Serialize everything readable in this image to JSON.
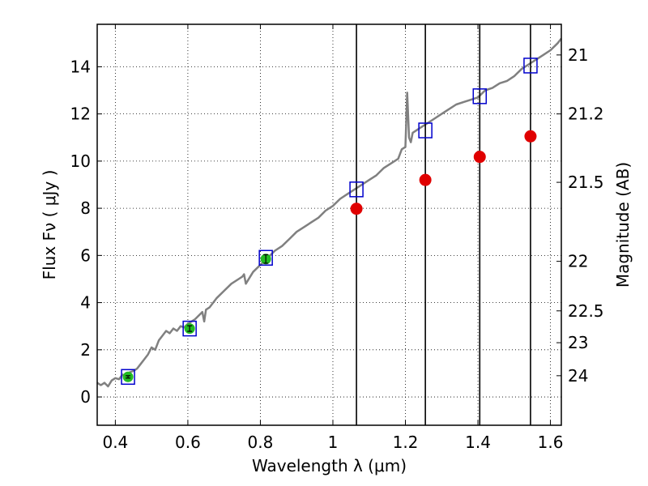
{
  "chart_data": {
    "type": "line",
    "title": "",
    "xlabel": "Wavelength  λ (μm)",
    "ylabel": "Flux  Fν  ( μJy )",
    "y2label": "Magnitude (AB)",
    "xlim": [
      0.35,
      1.63
    ],
    "ylim": [
      -1.2,
      15.8
    ],
    "x_ticks": [
      0.4,
      0.6,
      0.8,
      1.0,
      1.2,
      1.4,
      1.6
    ],
    "x_tick_labels": [
      "0.4",
      "0.6",
      "0.8",
      "1",
      "1.2",
      "1.4",
      "1.6"
    ],
    "y_ticks": [
      0,
      2,
      4,
      6,
      8,
      10,
      12,
      14
    ],
    "y_tick_labels": [
      "0",
      "2",
      "4",
      "6",
      "8",
      "10",
      "12",
      "14"
    ],
    "y2_tick_labels": [
      {
        "label": "21",
        "flux": 14.5
      },
      {
        "label": "21.2",
        "flux": 12.0
      },
      {
        "label": "21.5",
        "flux": 9.1
      },
      {
        "label": "22",
        "flux": 5.75
      },
      {
        "label": "22.5",
        "flux": 3.65
      },
      {
        "label": "23",
        "flux": 2.3
      },
      {
        "label": "24",
        "flux": 0.9
      }
    ],
    "grid": true,
    "colors": {
      "spectrum": "#808080",
      "model_box": "#0000cc",
      "red_point": "#e00000",
      "green_point": "#22bb22"
    },
    "series": [
      {
        "style": "line",
        "x": [
          0.35,
          0.36,
          0.37,
          0.38,
          0.39,
          0.4,
          0.41,
          0.42,
          0.43,
          0.44,
          0.45,
          0.46,
          0.47,
          0.48,
          0.49,
          0.5,
          0.51,
          0.52,
          0.53,
          0.54,
          0.55,
          0.56,
          0.57,
          0.58,
          0.59,
          0.6,
          0.62,
          0.64,
          0.645,
          0.65,
          0.66,
          0.68,
          0.7,
          0.72,
          0.74,
          0.75,
          0.755,
          0.76,
          0.78,
          0.8,
          0.82,
          0.84,
          0.86,
          0.88,
          0.9,
          0.92,
          0.94,
          0.96,
          0.98,
          1.0,
          1.02,
          1.04,
          1.06,
          1.08,
          1.1,
          1.12,
          1.14,
          1.16,
          1.18,
          1.19,
          1.2,
          1.205,
          1.21,
          1.215,
          1.22,
          1.24,
          1.26,
          1.28,
          1.3,
          1.32,
          1.34,
          1.36,
          1.38,
          1.4,
          1.42,
          1.44,
          1.46,
          1.48,
          1.5,
          1.52,
          1.54,
          1.56,
          1.58,
          1.6,
          1.62,
          1.63
        ],
        "y": [
          0.6,
          0.5,
          0.6,
          0.45,
          0.7,
          0.8,
          0.75,
          0.95,
          0.9,
          1.05,
          1.1,
          1.2,
          1.4,
          1.6,
          1.8,
          2.1,
          2.0,
          2.4,
          2.6,
          2.8,
          2.7,
          2.9,
          2.8,
          3.0,
          2.95,
          3.1,
          3.3,
          3.6,
          3.2,
          3.7,
          3.8,
          4.2,
          4.5,
          4.8,
          5.0,
          5.1,
          5.2,
          4.8,
          5.3,
          5.6,
          5.9,
          6.2,
          6.4,
          6.7,
          7.0,
          7.2,
          7.4,
          7.6,
          7.9,
          8.1,
          8.4,
          8.6,
          8.8,
          9.0,
          9.2,
          9.4,
          9.7,
          9.9,
          10.1,
          10.5,
          10.6,
          12.9,
          11.0,
          10.8,
          11.2,
          11.4,
          11.6,
          11.8,
          12.0,
          12.2,
          12.4,
          12.5,
          12.6,
          12.7,
          13.0,
          13.1,
          13.3,
          13.4,
          13.6,
          13.9,
          14.1,
          14.3,
          14.5,
          14.7,
          15.0,
          15.2
        ]
      },
      {
        "style": "squares",
        "x": [
          0.435,
          0.605,
          0.815,
          1.065,
          1.255,
          1.405,
          1.545
        ],
        "y": [
          0.85,
          2.9,
          5.9,
          8.8,
          11.3,
          12.75,
          14.05
        ]
      },
      {
        "style": "circles",
        "x": [
          1.065,
          1.255,
          1.405,
          1.545
        ],
        "y": [
          7.98,
          9.2,
          10.18,
          11.05
        ]
      },
      {
        "style": "errorbar-points",
        "x": [
          0.435,
          0.605,
          0.815
        ],
        "y": [
          0.85,
          2.9,
          5.85
        ],
        "yerr": [
          0.05,
          0.12,
          0.18
        ]
      }
    ],
    "vlines": [
      1.065,
      1.255,
      1.405,
      1.545
    ]
  }
}
